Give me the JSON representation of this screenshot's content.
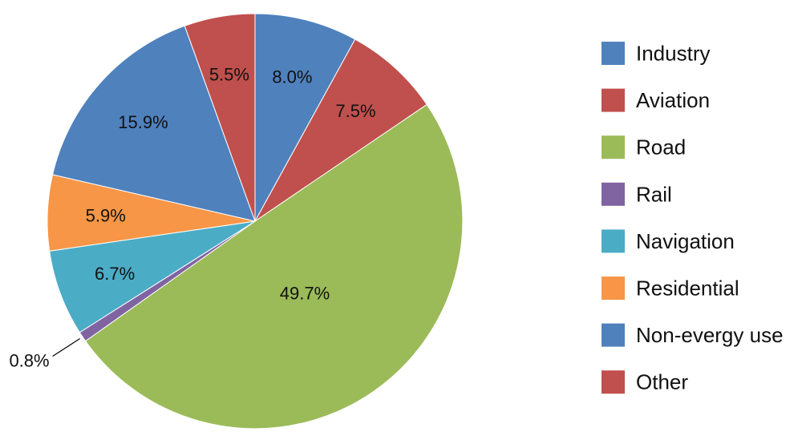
{
  "chart_data": {
    "type": "pie",
    "start_angle_deg": 0,
    "direction": "clockwise",
    "legend_position": "right",
    "slices": [
      {
        "label": "Industry",
        "value": 8.0,
        "display": "8.0%",
        "color": "#4f81bd"
      },
      {
        "label": "Aviation",
        "value": 7.5,
        "display": "7.5%",
        "color": "#c0504d"
      },
      {
        "label": "Road",
        "value": 49.7,
        "display": "49.7%",
        "color": "#9bbb59"
      },
      {
        "label": "Rail",
        "value": 0.8,
        "display": "0.8%",
        "color": "#8064a2"
      },
      {
        "label": "Navigation",
        "value": 6.7,
        "display": "6.7%",
        "color": "#4bacc6"
      },
      {
        "label": "Residential",
        "value": 5.9,
        "display": "5.9%",
        "color": "#f79646"
      },
      {
        "label": "Non-evergy use",
        "value": 15.9,
        "display": "15.9%",
        "color": "#4f81bd"
      },
      {
        "label": "Other",
        "value": 5.5,
        "display": "5.5%",
        "color": "#c0504d"
      }
    ]
  }
}
